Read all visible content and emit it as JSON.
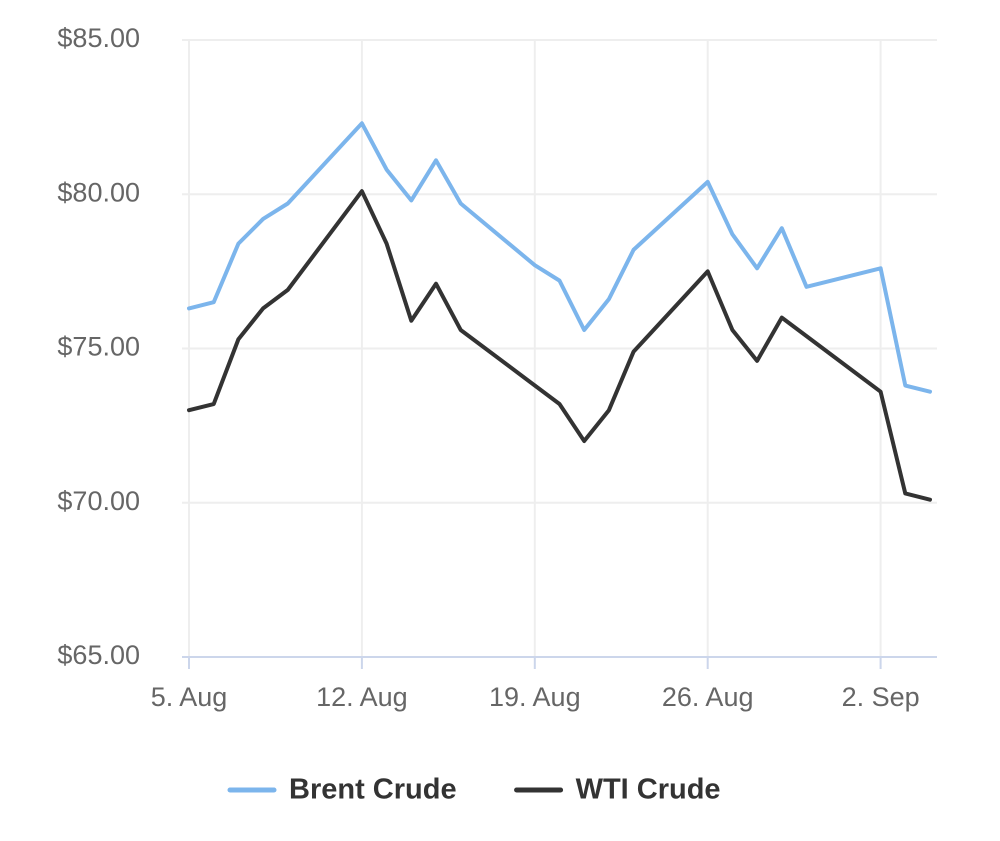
{
  "chart_data": {
    "type": "line",
    "x": [
      "5. Aug",
      "6. Aug",
      "7. Aug",
      "8. Aug",
      "9. Aug",
      "12. Aug",
      "13. Aug",
      "14. Aug",
      "15. Aug",
      "16. Aug",
      "19. Aug",
      "20. Aug",
      "21. Aug",
      "22. Aug",
      "23. Aug",
      "26. Aug",
      "27. Aug",
      "28. Aug",
      "29. Aug",
      "30. Aug",
      "2. Sep",
      "3. Sep",
      "4. Sep"
    ],
    "series": [
      {
        "name": "Brent Crude",
        "color": "#7cb5ec",
        "values": [
          76.3,
          76.5,
          78.4,
          79.2,
          79.7,
          82.3,
          80.8,
          79.8,
          81.1,
          79.7,
          77.7,
          77.2,
          75.6,
          76.6,
          78.2,
          80.4,
          78.7,
          77.6,
          78.9,
          77.0,
          77.6,
          73.8,
          73.6
        ]
      },
      {
        "name": "WTI Crude",
        "color": "#333333",
        "values": [
          73.0,
          73.2,
          75.3,
          76.3,
          76.9,
          80.1,
          78.4,
          75.9,
          77.1,
          75.6,
          73.8,
          73.2,
          72.0,
          73.0,
          74.9,
          77.5,
          75.6,
          74.6,
          76.0,
          75.4,
          73.6,
          70.3,
          70.1
        ]
      }
    ],
    "xlim": [
      "5. Aug",
      "4. Sep"
    ],
    "xticks": [
      "5. Aug",
      "12. Aug",
      "19. Aug",
      "26. Aug",
      "2. Sep"
    ],
    "ylim": [
      65,
      85
    ],
    "yticks": [
      {
        "value": 65,
        "label": "$65.00"
      },
      {
        "value": 70,
        "label": "$70.00"
      },
      {
        "value": 75,
        "label": "$75.00"
      },
      {
        "value": 80,
        "label": "$80.00"
      },
      {
        "value": 85,
        "label": "$85.00"
      }
    ],
    "grid": true,
    "legend": "bottom"
  }
}
